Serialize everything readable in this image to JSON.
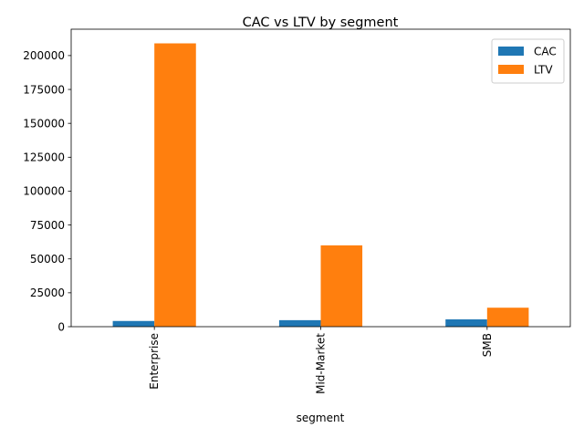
{
  "chart_data": {
    "type": "bar",
    "title": "CAC vs LTV by segment",
    "xlabel": "segment",
    "ylabel": "",
    "categories": [
      "Enterprise",
      "Mid-Market",
      "SMB"
    ],
    "series": [
      {
        "name": "CAC",
        "color": "#1f77b4",
        "values": [
          4200,
          4800,
          5400
        ]
      },
      {
        "name": "LTV",
        "color": "#ff7f0e",
        "values": [
          209000,
          60000,
          14000
        ]
      }
    ],
    "ylim": [
      0,
      219450
    ],
    "yticks": [
      0,
      25000,
      50000,
      75000,
      100000,
      125000,
      150000,
      175000,
      200000
    ],
    "grid": false,
    "legend": "top-right"
  }
}
